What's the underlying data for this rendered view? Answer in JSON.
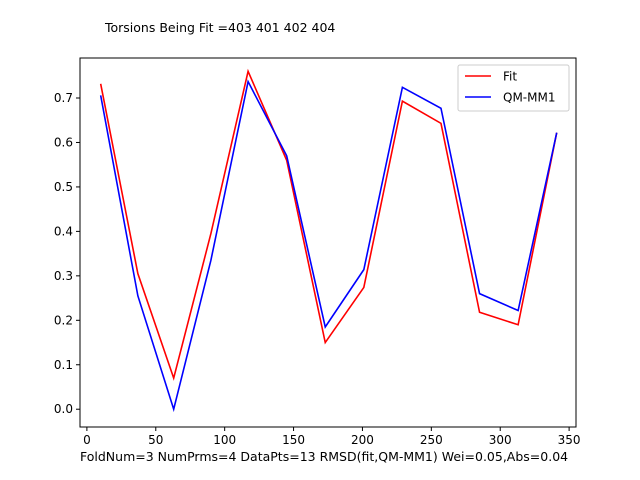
{
  "chart_data": {
    "type": "line",
    "title": "Torsions Being Fit =403 401 402 404",
    "footer": "FoldNum=3 NumPrms=4 DataPts=13 RMSD(fit,QM-MM1) Wei=0.05,Abs=0.04",
    "xlim": [
      -5,
      355
    ],
    "ylim": [
      -0.04,
      0.79
    ],
    "xticks": [
      0,
      50,
      100,
      150,
      200,
      250,
      300,
      350
    ],
    "yticks": [
      0.0,
      0.1,
      0.2,
      0.3,
      0.4,
      0.5,
      0.6,
      0.7
    ],
    "legend_position": "top-right",
    "x": [
      10,
      37,
      63,
      90,
      117,
      145,
      173,
      201,
      229,
      257,
      285,
      313,
      341
    ],
    "series": [
      {
        "name": "Fit",
        "color": "#ff0000",
        "values": [
          0.732,
          0.305,
          0.07,
          0.395,
          0.76,
          0.56,
          0.15,
          0.274,
          0.693,
          0.643,
          0.218,
          0.19,
          0.622
        ]
      },
      {
        "name": "QM-MM1",
        "color": "#0000ff",
        "values": [
          0.706,
          0.255,
          0.0,
          0.335,
          0.737,
          0.57,
          0.185,
          0.314,
          0.724,
          0.677,
          0.26,
          0.222,
          0.622
        ]
      }
    ]
  }
}
